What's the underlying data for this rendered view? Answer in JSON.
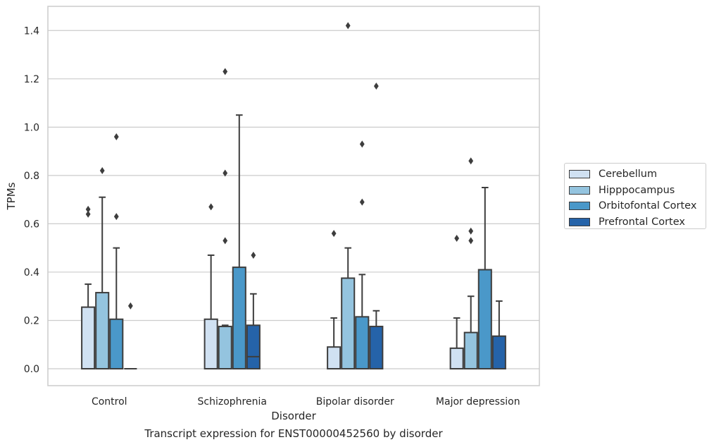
{
  "chart_data": {
    "type": "box",
    "title": "Transcript expression for ENST00000452560 by disorder",
    "xlabel": "Disorder",
    "ylabel": "TPMs",
    "ylim": [
      -0.07,
      1.5
    ],
    "yticks": [
      0.0,
      0.2,
      0.4,
      0.6,
      0.8,
      1.0,
      1.2,
      1.4
    ],
    "ytick_labels": [
      "0.0",
      "0.2",
      "0.4",
      "0.6",
      "0.8",
      "1.0",
      "1.2",
      "1.4"
    ],
    "categories": [
      "Control",
      "Schizophrenia",
      "Bipolar disorder",
      "Major depression"
    ],
    "grid": "horizontal",
    "legend_position": "right",
    "series": [
      {
        "name": "Cerebellum",
        "color": "#d0e1f2",
        "boxes": [
          {
            "q1": 0.0,
            "median": 0.0,
            "q3": 0.255,
            "whisker_low": 0.0,
            "whisker_high": 0.35,
            "outliers": [
              0.64,
              0.66
            ]
          },
          {
            "q1": 0.0,
            "median": 0.0,
            "q3": 0.205,
            "whisker_low": 0.0,
            "whisker_high": 0.47,
            "outliers": [
              0.67
            ]
          },
          {
            "q1": 0.0,
            "median": 0.0,
            "q3": 0.09,
            "whisker_low": 0.0,
            "whisker_high": 0.21,
            "outliers": [
              0.56
            ]
          },
          {
            "q1": 0.0,
            "median": 0.0,
            "q3": 0.085,
            "whisker_low": 0.0,
            "whisker_high": 0.21,
            "outliers": [
              0.54
            ]
          }
        ]
      },
      {
        "name": "Hipppocampus",
        "color": "#94c4df",
        "boxes": [
          {
            "q1": 0.0,
            "median": 0.0,
            "q3": 0.315,
            "whisker_low": 0.0,
            "whisker_high": 0.71,
            "outliers": [
              0.82
            ]
          },
          {
            "q1": 0.0,
            "median": 0.0,
            "q3": 0.175,
            "whisker_low": 0.0,
            "whisker_high": 0.18,
            "outliers": [
              0.53,
              0.81,
              1.23
            ]
          },
          {
            "q1": 0.0,
            "median": 0.0,
            "q3": 0.375,
            "whisker_low": 0.0,
            "whisker_high": 0.5,
            "outliers": [
              1.42
            ]
          },
          {
            "q1": 0.0,
            "median": 0.0,
            "q3": 0.15,
            "whisker_low": 0.0,
            "whisker_high": 0.3,
            "outliers": [
              0.53,
              0.57,
              0.86
            ]
          }
        ]
      },
      {
        "name": "Orbitofontal Cortex",
        "color": "#4a98c9",
        "boxes": [
          {
            "q1": 0.0,
            "median": 0.0,
            "q3": 0.205,
            "whisker_low": 0.0,
            "whisker_high": 0.5,
            "outliers": [
              0.63,
              0.96
            ]
          },
          {
            "q1": 0.0,
            "median": 0.0,
            "q3": 0.42,
            "whisker_low": 0.0,
            "whisker_high": 1.05,
            "outliers": []
          },
          {
            "q1": 0.0,
            "median": 0.0,
            "q3": 0.215,
            "whisker_low": 0.0,
            "whisker_high": 0.39,
            "outliers": [
              0.69,
              0.93
            ]
          },
          {
            "q1": 0.0,
            "median": 0.0,
            "q3": 0.41,
            "whisker_low": 0.0,
            "whisker_high": 0.75,
            "outliers": []
          }
        ]
      },
      {
        "name": "Prefrontal Cortex",
        "color": "#2563a9",
        "boxes": [
          {
            "q1": 0.0,
            "median": 0.0,
            "q3": 0.0,
            "whisker_low": 0.0,
            "whisker_high": 0.0,
            "outliers": [
              0.26
            ]
          },
          {
            "q1": 0.0,
            "median": 0.05,
            "q3": 0.18,
            "whisker_low": 0.0,
            "whisker_high": 0.31,
            "outliers": [
              0.47
            ]
          },
          {
            "q1": 0.0,
            "median": 0.0,
            "q3": 0.175,
            "whisker_low": 0.0,
            "whisker_high": 0.24,
            "outliers": [
              1.17
            ]
          },
          {
            "q1": 0.0,
            "median": 0.0,
            "q3": 0.135,
            "whisker_low": 0.0,
            "whisker_high": 0.28,
            "outliers": []
          }
        ]
      }
    ]
  }
}
